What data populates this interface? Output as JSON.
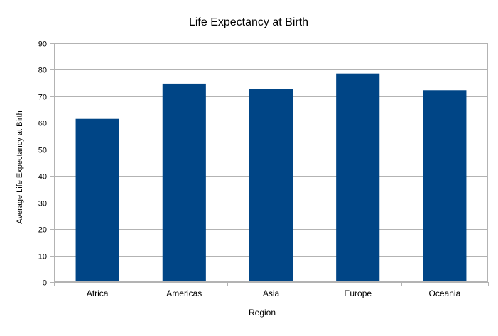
{
  "chart_data": {
    "type": "bar",
    "title": "Life Expectancy at Birth",
    "xlabel": "Region",
    "ylabel": "Average Life Expectancy at Birth",
    "categories": [
      "Africa",
      "Americas",
      "Asia",
      "Europe",
      "Oceania"
    ],
    "values": [
      61.5,
      74.8,
      72.7,
      78.6,
      72.3
    ],
    "ylim": [
      0,
      90
    ],
    "yticks": [
      0,
      10,
      20,
      30,
      40,
      50,
      60,
      70,
      80,
      90
    ],
    "grid": true,
    "legend": "none",
    "colors": {
      "bar": "#004586",
      "grid": "#b3b3b3",
      "axis": "#b3b3b3"
    }
  }
}
